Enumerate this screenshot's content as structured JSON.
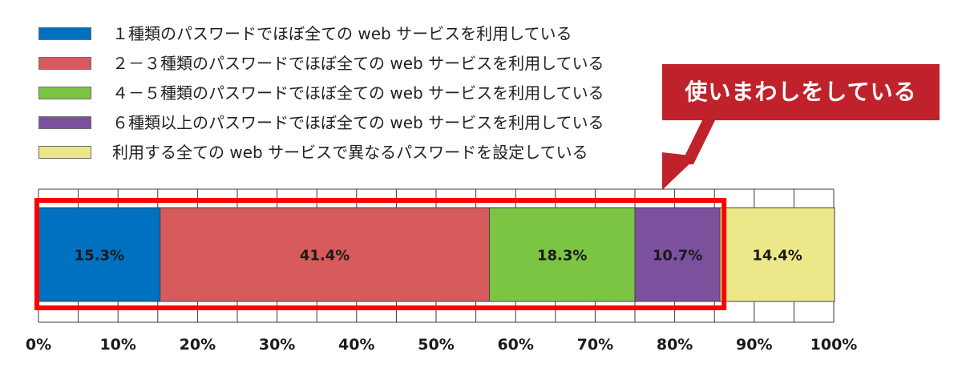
{
  "chart_data": {
    "type": "bar",
    "orientation": "horizontal-stacked-100",
    "series": [
      {
        "name": "１種類のパスワードでほぼ全ての web サービスを利用している",
        "value": 15.3,
        "value_label": "15.3%",
        "color": "#0070c0"
      },
      {
        "name": "２－３種類のパスワードでほぼ全ての web サービスを利用している",
        "value": 41.4,
        "value_label": "41.4%",
        "color": "#d75b5c"
      },
      {
        "name": "４－５種類のパスワードでほぼ全ての web サービスを利用している",
        "value": 18.3,
        "value_label": "18.3%",
        "color": "#7cc444"
      },
      {
        "name": "６種類以上のパスワードでほぼ全ての web サービスを利用している",
        "value": 10.7,
        "value_label": "10.7%",
        "color": "#7b519d"
      },
      {
        "name": "利用する全ての web サービスで異なるパスワードを設定している",
        "value": 14.4,
        "value_label": "14.4%",
        "color": "#ece88a"
      }
    ],
    "xlim": [
      0,
      100
    ],
    "x_ticks": [
      "0%",
      "10%",
      "20%",
      "30%",
      "40%",
      "50%",
      "60%",
      "70%",
      "80%",
      "90%",
      "100%"
    ],
    "grid": true,
    "legend_position": "top-left",
    "highlight": {
      "covers_series": [
        0,
        1,
        2,
        3
      ],
      "color": "#ff0000"
    }
  },
  "callout": {
    "text": "使いまわしをしている",
    "color": "#c0222b"
  }
}
